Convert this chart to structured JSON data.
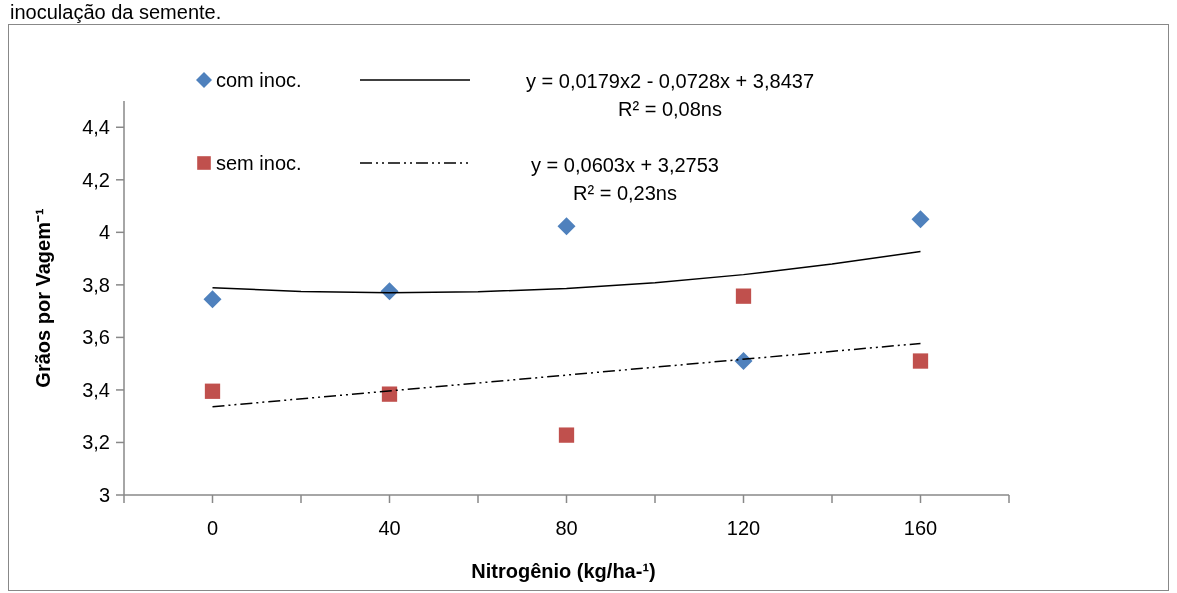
{
  "chart_data": {
    "type": "scatter",
    "xlabel": "Nitrogênio (kg/ha-¹)",
    "ylabel": "Grãos por Vagem⁻¹",
    "xlim": [
      -20,
      180
    ],
    "xticks": [
      {
        "value": -20,
        "label": null
      },
      {
        "value": 0,
        "label": "0"
      },
      {
        "value": 20,
        "label": null
      },
      {
        "value": 40,
        "label": "40"
      },
      {
        "value": 60,
        "label": null
      },
      {
        "value": 80,
        "label": "80"
      },
      {
        "value": 100,
        "label": null
      },
      {
        "value": 120,
        "label": "120"
      },
      {
        "value": 140,
        "label": null
      },
      {
        "value": 160,
        "label": "160"
      },
      {
        "value": 180,
        "label": null
      }
    ],
    "ylim": [
      3,
      4.5
    ],
    "yticks": [
      3,
      {
        "value": 3.2,
        "label": "3,2"
      },
      {
        "value": 3.4,
        "label": "3,4"
      },
      {
        "value": 3.6,
        "label": "3,6"
      },
      {
        "value": 3.8,
        "label": "3,8"
      },
      4,
      {
        "value": 4.2,
        "label": "4,2"
      },
      {
        "value": 4.4,
        "label": "4,4"
      }
    ],
    "x": [
      0,
      40,
      80,
      120,
      160
    ],
    "grid": false,
    "legend": "top left",
    "series": [
      {
        "name": "com inoc.",
        "color": "#4f81bd",
        "marker": "diamond",
        "values": [
          3.745,
          3.776,
          4.023,
          3.51,
          4.05
        ]
      },
      {
        "name": "sem inoc.",
        "color": "#c0504d",
        "marker": "square",
        "values": [
          3.395,
          3.384,
          3.228,
          3.757,
          3.51
        ]
      },
      {
        "type": "line",
        "color": "#000000",
        "line_style": "solid",
        "marker": "none",
        "x": [
          0,
          20,
          40,
          60,
          80,
          100,
          120,
          140,
          160
        ],
        "values": [
          3.789,
          3.775,
          3.77,
          3.774,
          3.786,
          3.808,
          3.839,
          3.879,
          3.927
        ]
      },
      {
        "type": "line",
        "color": "#000000",
        "line_style": "dashdotdot",
        "marker": "none",
        "x": [
          0,
          160
        ],
        "values": [
          3.336,
          3.577
        ]
      }
    ],
    "annotations": [
      "y = 0,0179x2 - 0,0728x + 3,8437",
      "R² = 0,08ns",
      "y = 0,0603x + 3,2753",
      "R² = 0,23ns",
      "inoculação da semente."
    ]
  }
}
